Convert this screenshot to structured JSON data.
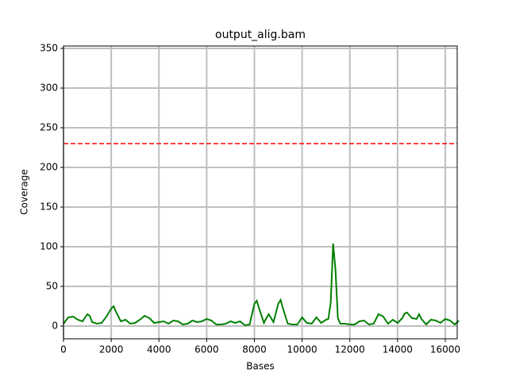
{
  "chart_data": {
    "type": "line",
    "title": "output_alig.bam",
    "xlabel": "Bases",
    "ylabel": "Coverage",
    "x": [
      0,
      200,
      400,
      600,
      800,
      1000,
      1100,
      1200,
      1400,
      1600,
      1800,
      2000,
      2100,
      2200,
      2400,
      2600,
      2800,
      3000,
      3200,
      3400,
      3600,
      3800,
      4000,
      4200,
      4400,
      4600,
      4800,
      5000,
      5200,
      5400,
      5600,
      5800,
      6000,
      6200,
      6400,
      6600,
      6800,
      7000,
      7200,
      7400,
      7600,
      7800,
      8000,
      8100,
      8200,
      8400,
      8500,
      8600,
      8800,
      9000,
      9100,
      9200,
      9400,
      9600,
      9800,
      10000,
      10200,
      10400,
      10600,
      10800,
      11000,
      11100,
      11200,
      11300,
      11400,
      11500,
      11600,
      11800,
      12000,
      12200,
      12400,
      12600,
      12800,
      13000,
      13200,
      13400,
      13600,
      13800,
      14000,
      14200,
      14300,
      14400,
      14600,
      14800,
      14900,
      15000,
      15200,
      15400,
      15600,
      15800,
      16000,
      16200,
      16400,
      16569
    ],
    "series": [
      {
        "name": "coverage",
        "color": "#008000",
        "values": [
          3,
          11,
          12,
          8,
          6,
          15,
          13,
          5,
          3,
          4,
          12,
          22,
          25,
          18,
          6,
          8,
          3,
          4,
          8,
          13,
          10,
          4,
          5,
          6,
          3,
          7,
          6,
          2,
          3,
          7,
          5,
          6,
          9,
          7,
          2,
          2,
          3,
          6,
          4,
          6,
          1,
          2,
          28,
          32,
          22,
          4,
          10,
          15,
          5,
          28,
          33,
          22,
          3,
          2,
          2,
          11,
          4,
          3,
          11,
          4,
          8,
          9,
          30,
          104,
          70,
          10,
          3,
          3,
          2,
          2,
          6,
          7,
          2,
          3,
          15,
          12,
          3,
          8,
          4,
          10,
          16,
          17,
          10,
          9,
          15,
          9,
          2,
          8,
          7,
          4,
          9,
          7,
          2,
          7
        ]
      }
    ],
    "threshold": 230,
    "threshold_color": "#ff0000",
    "xlim": [
      0,
      16500
    ],
    "ylim": [
      -16,
      353
    ],
    "xticks": [
      0,
      2000,
      4000,
      6000,
      8000,
      10000,
      12000,
      14000,
      16000
    ],
    "yticks": [
      0,
      50,
      100,
      150,
      200,
      250,
      300,
      350
    ],
    "grid": true
  }
}
